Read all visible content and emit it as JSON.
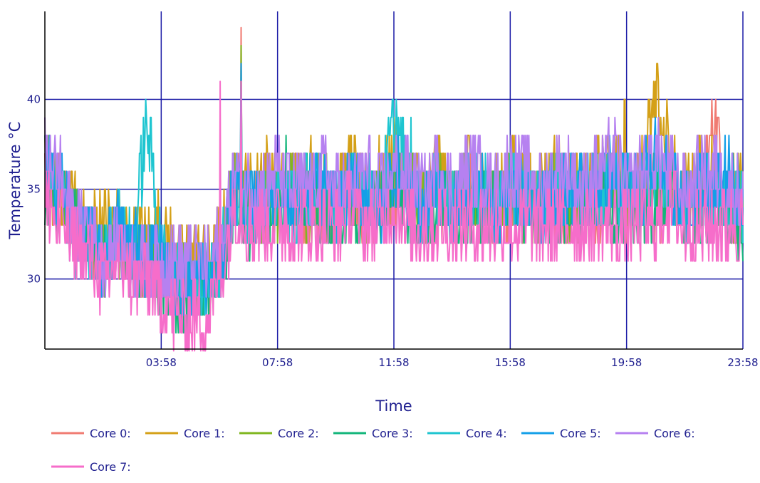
{
  "chart_data": {
    "type": "line",
    "xlabel": "Time",
    "ylabel": "Temperature °C",
    "x_tick_labels": [
      "03:58",
      "07:58",
      "11:58",
      "15:58",
      "19:58",
      "23:58"
    ],
    "x_tick_hours": [
      3.967,
      7.967,
      11.967,
      15.967,
      19.967,
      23.967
    ],
    "x_range_hours": [
      -0.033,
      23.967
    ],
    "y_ticks": [
      30,
      35,
      40
    ],
    "ylim": [
      26.1,
      44.9
    ],
    "grid": true,
    "grid_color": "#1a1aa6",
    "legend_placement": "bottom-left",
    "x_hours": [
      0,
      0.5,
      1,
      1.5,
      2,
      2.5,
      3,
      3.5,
      4,
      4.5,
      5,
      5.5,
      6,
      6.5,
      7,
      7.5,
      8,
      8.5,
      9,
      9.5,
      10,
      10.5,
      11,
      11.5,
      12,
      12.5,
      13,
      13.5,
      14,
      14.5,
      15,
      15.5,
      16,
      16.5,
      17,
      17.5,
      18,
      18.5,
      19,
      19.5,
      20,
      20.5,
      21,
      21.5,
      22,
      22.5,
      23,
      23.5,
      24
    ],
    "series": [
      {
        "name": "Core 0:",
        "color": "#f07b72",
        "values": [
          36,
          35,
          33,
          32,
          31,
          32,
          31,
          31,
          31,
          30,
          30,
          30,
          31,
          35,
          34,
          34,
          34,
          35,
          34,
          34,
          34,
          35,
          34,
          34,
          35,
          35,
          34,
          34,
          34,
          35,
          34,
          34,
          34,
          35,
          34,
          34,
          34,
          35,
          34,
          35,
          34,
          35,
          34,
          35,
          34,
          35,
          39,
          34,
          34
        ]
      },
      {
        "name": "Core 1:",
        "color": "#d4a017",
        "values": [
          36,
          34,
          34,
          33,
          33,
          33,
          32,
          32,
          33,
          31,
          31,
          31,
          32,
          35,
          35,
          36,
          35,
          35,
          36,
          35,
          35,
          36,
          35,
          35,
          37,
          35,
          35,
          36,
          35,
          36,
          35,
          35,
          36,
          35,
          35,
          36,
          35,
          35,
          36,
          36,
          35,
          36,
          40,
          36,
          35,
          36,
          36,
          35,
          35
        ]
      },
      {
        "name": "Core 2:",
        "color": "#7fb61f",
        "values": [
          36,
          35,
          33,
          32,
          31,
          32,
          31,
          31,
          31,
          30,
          30,
          30,
          31,
          35,
          34,
          34,
          34,
          35,
          34,
          35,
          34,
          35,
          34,
          34,
          36,
          35,
          34,
          35,
          34,
          35,
          34,
          34,
          35,
          34,
          34,
          35,
          34,
          34,
          35,
          35,
          34,
          35,
          35,
          35,
          34,
          35,
          35,
          34,
          34
        ]
      },
      {
        "name": "Core 3:",
        "color": "#12b57a",
        "values": [
          35,
          34,
          33,
          32,
          31,
          32,
          31,
          31,
          30,
          29,
          29,
          29,
          31,
          34,
          33,
          34,
          34,
          34,
          35,
          34,
          34,
          34,
          34,
          34,
          36,
          34,
          34,
          34,
          34,
          34,
          34,
          34,
          35,
          34,
          34,
          34,
          34,
          34,
          35,
          34,
          34,
          34,
          34,
          35,
          34,
          34,
          34,
          34,
          32
        ]
      },
      {
        "name": "Core 4:",
        "color": "#1ec5d0",
        "values": [
          36,
          35,
          32,
          32,
          31,
          33,
          32,
          39,
          31,
          30,
          30,
          30,
          31,
          35,
          34,
          34,
          35,
          34,
          35,
          35,
          34,
          35,
          35,
          34,
          39,
          35,
          34,
          35,
          34,
          35,
          35,
          34,
          35,
          35,
          34,
          35,
          35,
          35,
          35,
          35,
          35,
          35,
          36,
          35,
          34,
          35,
          35,
          34,
          34
        ]
      },
      {
        "name": "Core 5:",
        "color": "#139fe8",
        "values": [
          36,
          35,
          33,
          32,
          31,
          33,
          32,
          31,
          31,
          30,
          30,
          30,
          31,
          35,
          34,
          34,
          35,
          34,
          35,
          35,
          34,
          35,
          35,
          34,
          36,
          35,
          34,
          35,
          34,
          35,
          35,
          34,
          35,
          35,
          34,
          35,
          35,
          35,
          35,
          36,
          35,
          35,
          38,
          35,
          34,
          35,
          35,
          36,
          34
        ]
      },
      {
        "name": "Core 6:",
        "color": "#b681f0",
        "values": [
          37,
          36,
          33,
          33,
          31,
          32,
          31,
          31,
          31,
          31,
          31,
          31,
          32,
          36,
          35,
          35,
          36,
          35,
          35,
          36,
          35,
          35,
          36,
          35,
          36,
          36,
          35,
          36,
          35,
          36,
          36,
          35,
          36,
          36,
          35,
          36,
          36,
          35,
          36,
          37,
          35,
          36,
          37,
          36,
          35,
          36,
          36,
          35,
          35
        ]
      },
      {
        "name": "Core 7:",
        "color": "#f66dca",
        "values": [
          34,
          33,
          32,
          31,
          30,
          31,
          30,
          30,
          29,
          28,
          28,
          28,
          30,
          34,
          33,
          33,
          33,
          33,
          33,
          33,
          33,
          34,
          33,
          33,
          34,
          33,
          33,
          33,
          33,
          33,
          33,
          33,
          33,
          33,
          33,
          33,
          33,
          33,
          33,
          33,
          33,
          33,
          33,
          34,
          33,
          33,
          33,
          33,
          33
        ]
      }
    ],
    "spikes": [
      {
        "series": 4,
        "hours": 3.47,
        "value": 39
      },
      {
        "series": 7,
        "hours": 6.0,
        "value": 41
      },
      {
        "series": 0,
        "hours": 6.72,
        "value": 44
      },
      {
        "series": 2,
        "hours": 6.72,
        "value": 43
      },
      {
        "series": 5,
        "hours": 6.72,
        "value": 42
      },
      {
        "series": 7,
        "hours": 6.72,
        "value": 41
      },
      {
        "series": 3,
        "hours": 8.25,
        "value": 38
      },
      {
        "series": 1,
        "hours": 11.45,
        "value": 38
      },
      {
        "series": 4,
        "hours": 12.55,
        "value": 39
      },
      {
        "series": 1,
        "hours": 19.7,
        "value": 38
      },
      {
        "series": 1,
        "hours": 19.83,
        "value": 37
      },
      {
        "series": 1,
        "hours": 19.9,
        "value": 40
      },
      {
        "series": 1,
        "hours": 21.35,
        "value": 40
      },
      {
        "series": 5,
        "hours": 21.33,
        "value": 38
      },
      {
        "series": 0,
        "hours": 23.0,
        "value": 39
      }
    ]
  }
}
